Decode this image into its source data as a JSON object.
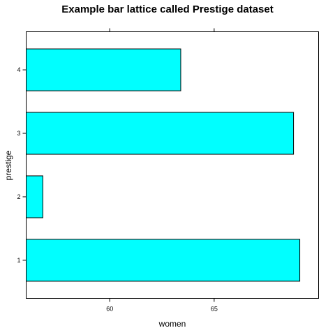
{
  "chart_data": {
    "type": "bar",
    "orientation": "horizontal",
    "title": "Example bar lattice called Prestige dataset",
    "xlabel": "women",
    "ylabel": "prestige",
    "categories": [
      "1",
      "2",
      "3",
      "4"
    ],
    "values": [
      69.1,
      56.8,
      68.8,
      63.4
    ],
    "xlim": [
      56.0,
      70.0
    ],
    "x_ticks": [
      60,
      65
    ],
    "x_tick_labels": [
      "60",
      "65"
    ],
    "bar_color": "#00FFFF",
    "bar_border_color": "#000000",
    "grid": false,
    "legend": "none"
  }
}
